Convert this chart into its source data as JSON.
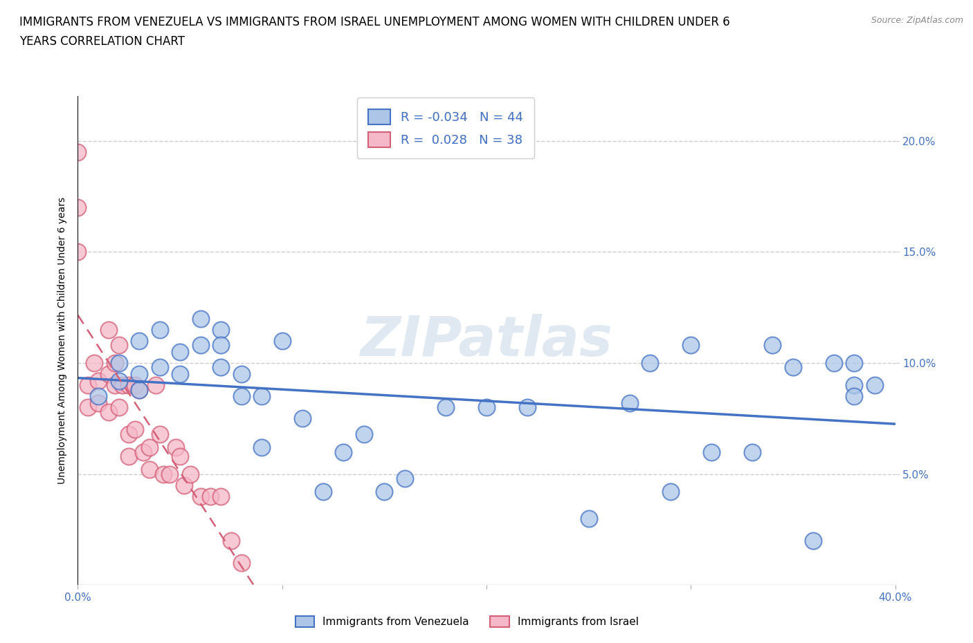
{
  "title_line1": "IMMIGRANTS FROM VENEZUELA VS IMMIGRANTS FROM ISRAEL UNEMPLOYMENT AMONG WOMEN WITH CHILDREN UNDER 6",
  "title_line2": "YEARS CORRELATION CHART",
  "source": "Source: ZipAtlas.com",
  "ylabel": "Unemployment Among Women with Children Under 6 years",
  "watermark": "ZIPatlas",
  "xlim": [
    0.0,
    0.4
  ],
  "ylim": [
    0.0,
    0.22
  ],
  "yticks": [
    0.05,
    0.1,
    0.15,
    0.2
  ],
  "xtick_positions": [
    0.0,
    0.1,
    0.2,
    0.3,
    0.4
  ],
  "legend_R1": "-0.034",
  "legend_N1": "44",
  "legend_R2": "0.028",
  "legend_N2": "38",
  "color_venezuela": "#adc6e8",
  "color_israel": "#f5b8c8",
  "color_line_venezuela": "#4472c4",
  "color_line_israel": "#d45f78",
  "scatter_venezuela_x": [
    0.01,
    0.02,
    0.02,
    0.03,
    0.03,
    0.03,
    0.04,
    0.04,
    0.05,
    0.05,
    0.06,
    0.06,
    0.07,
    0.07,
    0.07,
    0.08,
    0.08,
    0.09,
    0.09,
    0.1,
    0.11,
    0.12,
    0.13,
    0.14,
    0.15,
    0.16,
    0.18,
    0.2,
    0.22,
    0.25,
    0.27,
    0.28,
    0.29,
    0.3,
    0.31,
    0.33,
    0.34,
    0.35,
    0.36,
    0.37,
    0.38,
    0.38,
    0.38,
    0.39
  ],
  "scatter_venezuela_y": [
    0.085,
    0.092,
    0.1,
    0.088,
    0.095,
    0.11,
    0.098,
    0.115,
    0.105,
    0.095,
    0.12,
    0.108,
    0.115,
    0.108,
    0.098,
    0.095,
    0.085,
    0.085,
    0.062,
    0.11,
    0.075,
    0.042,
    0.06,
    0.068,
    0.042,
    0.048,
    0.08,
    0.08,
    0.08,
    0.03,
    0.082,
    0.1,
    0.042,
    0.108,
    0.06,
    0.06,
    0.108,
    0.098,
    0.02,
    0.1,
    0.1,
    0.09,
    0.085,
    0.09
  ],
  "scatter_israel_x": [
    0.0,
    0.0,
    0.0,
    0.005,
    0.005,
    0.008,
    0.01,
    0.01,
    0.015,
    0.015,
    0.015,
    0.018,
    0.018,
    0.02,
    0.02,
    0.022,
    0.025,
    0.025,
    0.025,
    0.028,
    0.028,
    0.03,
    0.032,
    0.035,
    0.035,
    0.038,
    0.04,
    0.042,
    0.045,
    0.048,
    0.05,
    0.052,
    0.055,
    0.06,
    0.065,
    0.07,
    0.075,
    0.08
  ],
  "scatter_israel_y": [
    0.195,
    0.17,
    0.15,
    0.09,
    0.08,
    0.1,
    0.092,
    0.082,
    0.115,
    0.095,
    0.078,
    0.1,
    0.09,
    0.108,
    0.08,
    0.09,
    0.09,
    0.068,
    0.058,
    0.09,
    0.07,
    0.088,
    0.06,
    0.062,
    0.052,
    0.09,
    0.068,
    0.05,
    0.05,
    0.062,
    0.058,
    0.045,
    0.05,
    0.04,
    0.04,
    0.04,
    0.02,
    0.01
  ],
  "background_color": "#ffffff",
  "grid_color": "#cccccc",
  "title_fontsize": 12,
  "label_fontsize": 10,
  "tick_fontsize": 11
}
